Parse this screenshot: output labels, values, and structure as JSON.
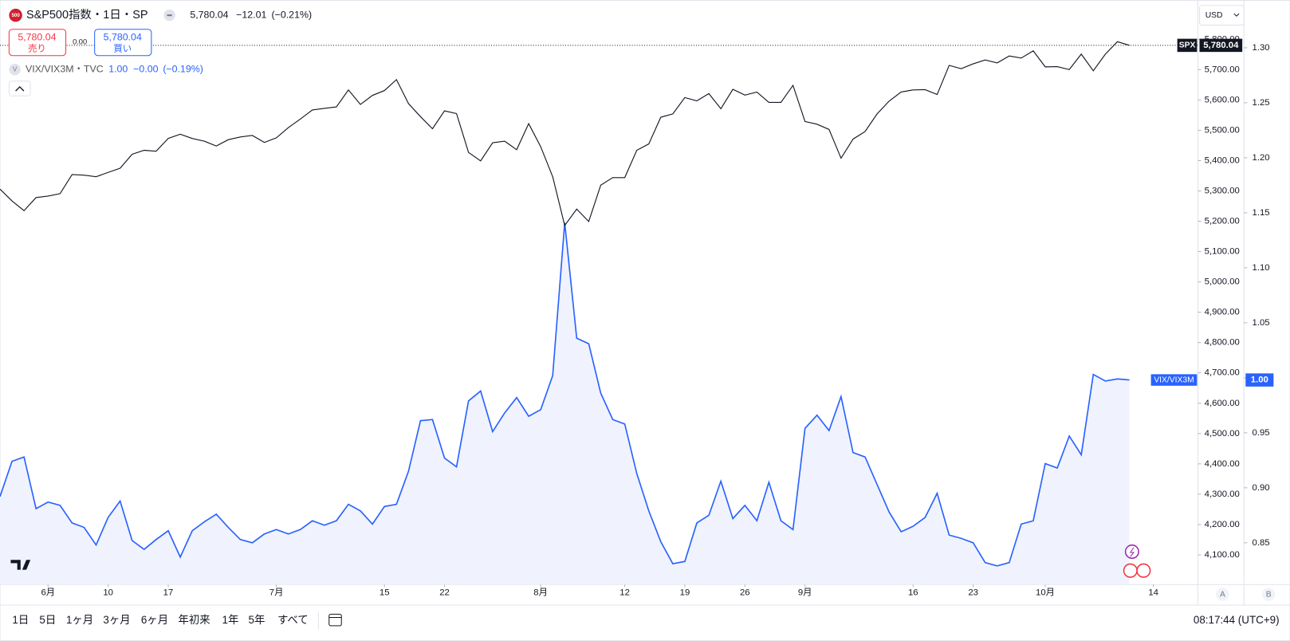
{
  "header": {
    "logo": "500",
    "symbol": "S&P500指数・1日・SP",
    "last": "5,780.04",
    "change": "−12.01",
    "change_pct": "(−0.21%)",
    "sell_price": "5,780.04",
    "sell_label": "売り",
    "spread": "0.00",
    "buy_price": "5,780.04",
    "buy_label": "買い",
    "currency": "USD"
  },
  "legend": {
    "icon": "V",
    "name": "VIX/VIX3M・TVC",
    "value": "1.00",
    "change": "−0.00",
    "change_pct": "(−0.19%)"
  },
  "chart_data": {
    "type": "line",
    "xlim": [
      0,
      99.7
    ],
    "xticks": [
      {
        "value": 4,
        "label": "6月"
      },
      {
        "value": 9,
        "label": "10"
      },
      {
        "value": 14,
        "label": "17"
      },
      {
        "value": 23,
        "label": "7月"
      },
      {
        "value": 32,
        "label": "15"
      },
      {
        "value": 37,
        "label": "22"
      },
      {
        "value": 45,
        "label": "8月"
      },
      {
        "value": 52,
        "label": "12"
      },
      {
        "value": 57,
        "label": "19"
      },
      {
        "value": 62,
        "label": "26"
      },
      {
        "value": 67,
        "label": "9月"
      },
      {
        "value": 76,
        "label": "16"
      },
      {
        "value": 81,
        "label": "23"
      },
      {
        "value": 87,
        "label": "10月"
      },
      {
        "value": 96,
        "label": "14"
      }
    ],
    "ylim": [
      4002,
      5928
    ],
    "yticks": [
      {
        "value": 4100,
        "label": "4,100.00"
      },
      {
        "value": 4200,
        "label": "4,200.00"
      },
      {
        "value": 4300,
        "label": "4,300.00"
      },
      {
        "value": 4400,
        "label": "4,400.00"
      },
      {
        "value": 4500,
        "label": "4,500.00"
      },
      {
        "value": 4600,
        "label": "4,600.00"
      },
      {
        "value": 4700,
        "label": "4,700.00"
      },
      {
        "value": 4800,
        "label": "4,800.00"
      },
      {
        "value": 4900,
        "label": "4,900.00"
      },
      {
        "value": 5000,
        "label": "5,000.00"
      },
      {
        "value": 5100,
        "label": "5,100.00"
      },
      {
        "value": 5200,
        "label": "5,200.00"
      },
      {
        "value": 5300,
        "label": "5,300.00"
      },
      {
        "value": 5400,
        "label": "5,400.00"
      },
      {
        "value": 5500,
        "label": "5,500.00"
      },
      {
        "value": 5600,
        "label": "5,600.00"
      },
      {
        "value": 5700,
        "label": "5,700.00"
      },
      {
        "value": 5800,
        "label": "5,800.00"
      }
    ],
    "y2lim": [
      0.812,
      1.343
    ],
    "y2ticks": [
      0.85,
      {
        "value": 0.9,
        "label": "0.90"
      },
      0.95,
      {
        "value": 1,
        "label": "1.00"
      },
      1.05,
      {
        "value": 1.1,
        "label": "1.10"
      },
      1.15,
      {
        "value": 1.2,
        "label": "1.20"
      },
      1.25,
      {
        "value": 1.3,
        "label": "1.30"
      }
    ],
    "series": [
      {
        "name": "SPX",
        "color": "#131722",
        "last_label": "5,780.04",
        "values": [
          5306,
          5267,
          5235,
          5278,
          5283,
          5291,
          5354,
          5352,
          5347,
          5361,
          5375,
          5421,
          5434,
          5431,
          5473,
          5487,
          5473,
          5464,
          5448,
          5469,
          5478,
          5483,
          5460,
          5475,
          5509,
          5537,
          5567,
          5572,
          5577,
          5633,
          5585,
          5615,
          5631,
          5667,
          5588,
          5545,
          5505,
          5564,
          5555,
          5427,
          5399,
          5459,
          5464,
          5436,
          5522,
          5446,
          5347,
          5186,
          5240,
          5199,
          5319,
          5344,
          5344,
          5434,
          5455,
          5543,
          5554,
          5608,
          5597,
          5621,
          5571,
          5635,
          5616,
          5626,
          5592,
          5592,
          5648,
          5529,
          5520,
          5503,
          5408,
          5471,
          5496,
          5554,
          5596,
          5626,
          5633,
          5634,
          5618,
          5714,
          5703,
          5719,
          5732,
          5722,
          5745,
          5738,
          5762,
          5709,
          5710,
          5700,
          5751,
          5696,
          5751,
          5792,
          5780.04
        ]
      },
      {
        "name": "VIX/VIX3M",
        "color": "#2962ff",
        "fill": "#f0f3fd",
        "axis": "y2",
        "last_label": "1.00",
        "values": [
          0.892,
          0.924,
          0.928,
          0.881,
          0.887,
          0.884,
          0.868,
          0.864,
          0.848,
          0.873,
          0.888,
          0.852,
          0.844,
          0.853,
          0.861,
          0.837,
          0.861,
          0.869,
          0.876,
          0.864,
          0.853,
          0.85,
          0.858,
          0.862,
          0.858,
          0.862,
          0.87,
          0.866,
          0.87,
          0.885,
          0.879,
          0.867,
          0.883,
          0.885,
          0.915,
          0.961,
          0.962,
          0.927,
          0.919,
          0.979,
          0.988,
          0.951,
          0.968,
          0.982,
          0.965,
          0.971,
          1.002,
          1.141,
          1.036,
          1.031,
          0.986,
          0.962,
          0.958,
          0.913,
          0.879,
          0.851,
          0.831,
          0.833,
          0.868,
          0.875,
          0.906,
          0.872,
          0.884,
          0.87,
          0.905,
          0.87,
          0.862,
          0.954,
          0.966,
          0.952,
          0.983,
          0.932,
          0.928,
          0.903,
          0.878,
          0.86,
          0.865,
          0.873,
          0.895,
          0.857,
          0.854,
          0.85,
          0.832,
          0.829,
          0.832,
          0.867,
          0.87,
          0.922,
          0.918,
          0.947,
          0.93,
          1.003,
          0.997,
          0.999,
          0.998
        ]
      }
    ]
  },
  "axis_buttons": [
    "A",
    "B"
  ],
  "toolbar": {
    "ranges": [
      "1日",
      "5日",
      "1ヶ月",
      "3ヶ月",
      "6ヶ月",
      "年初来",
      "1年",
      "5年",
      "すべて"
    ],
    "clock": "08:17:44 (UTC+9)"
  }
}
